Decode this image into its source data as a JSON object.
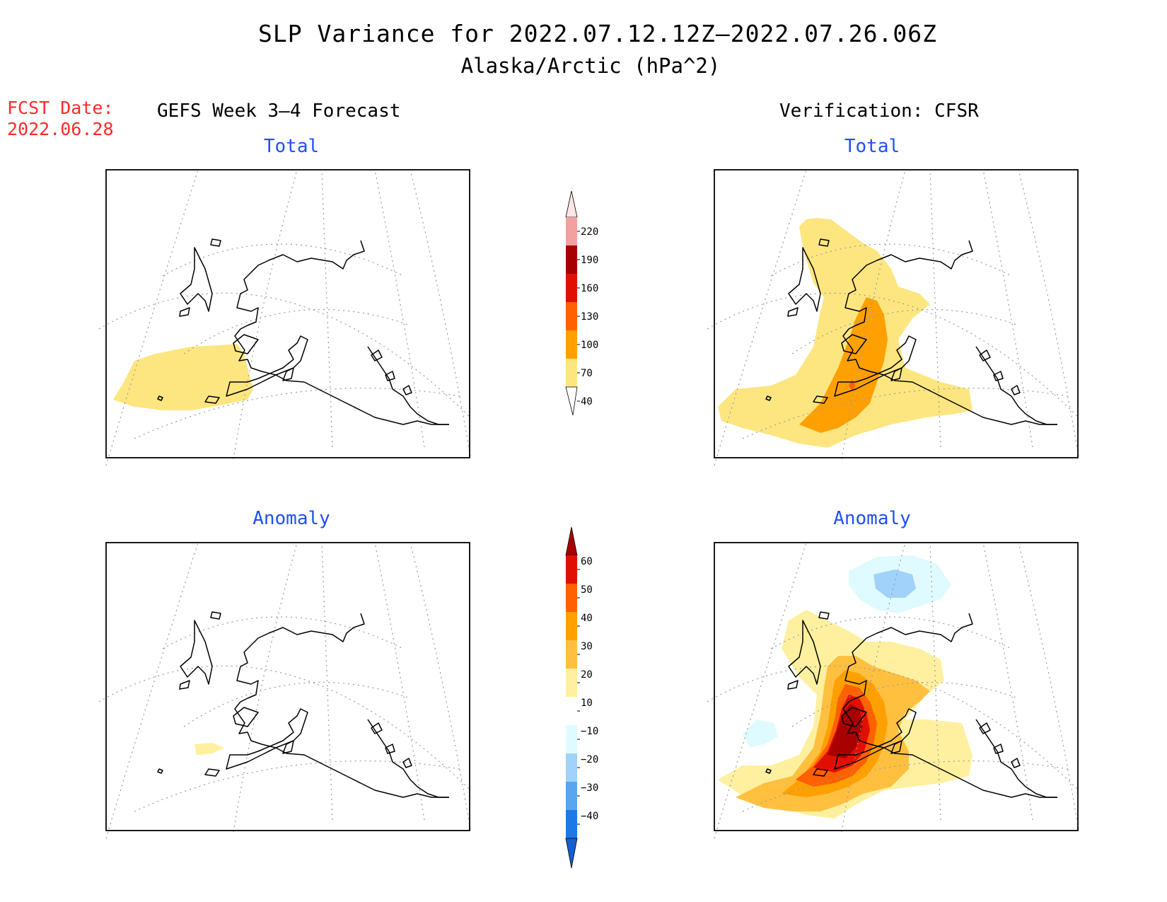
{
  "title": {
    "line1": "SLP Variance for 2022.07.12.12Z–2022.07.26.06Z",
    "line2": "Alaska/Arctic (hPa^2)"
  },
  "fcst": {
    "label": "FCST Date:",
    "date": "2022.06.28"
  },
  "columns": {
    "left": "GEFS Week 3–4 Forecast",
    "right": "Verification: CFSR"
  },
  "panels": [
    {
      "id": "forecast-total",
      "subtitle": "Total"
    },
    {
      "id": "verification-total",
      "subtitle": "Total"
    },
    {
      "id": "forecast-anomaly",
      "subtitle": "Anomaly"
    },
    {
      "id": "verification-anomaly",
      "subtitle": "Anomaly"
    }
  ],
  "total_colorbar": {
    "ticks": [
      "220",
      "190",
      "160",
      "130",
      "100",
      "70",
      "40"
    ],
    "colors": [
      "#fde6e6",
      "#f2a0a0",
      "#a80000",
      "#e01000",
      "#ff6000",
      "#ffa000",
      "#fde680"
    ]
  },
  "anomaly_colorbar": {
    "ticks": [
      "60",
      "50",
      "40",
      "30",
      "20",
      "10",
      "−10",
      "−20",
      "−30",
      "−40"
    ],
    "colors": [
      "#a80000",
      "#e01000",
      "#ff6000",
      "#ffa000",
      "#ffc040",
      "#fff0a0",
      "#ffffff",
      "#e0fbff",
      "#a0d2fa",
      "#5aa5f0",
      "#1e78e6",
      "#1460d2"
    ]
  }
}
